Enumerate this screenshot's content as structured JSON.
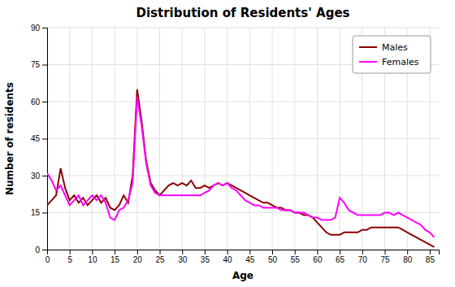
{
  "chart_data": {
    "type": "line",
    "title": "Distribution of Residents' Ages",
    "xlabel": "Age",
    "ylabel": "Number of residents",
    "x": [
      0,
      1,
      2,
      3,
      4,
      5,
      6,
      7,
      8,
      9,
      10,
      11,
      12,
      13,
      14,
      15,
      16,
      17,
      18,
      19,
      20,
      21,
      22,
      23,
      24,
      25,
      26,
      27,
      28,
      29,
      30,
      31,
      32,
      33,
      34,
      35,
      36,
      37,
      38,
      39,
      40,
      41,
      42,
      43,
      44,
      45,
      46,
      47,
      48,
      49,
      50,
      51,
      52,
      53,
      54,
      55,
      56,
      57,
      58,
      59,
      60,
      61,
      62,
      63,
      64,
      65,
      66,
      67,
      68,
      69,
      70,
      71,
      72,
      73,
      74,
      75,
      76,
      77,
      78,
      79,
      80,
      81,
      82,
      83,
      84,
      85,
      86
    ],
    "series": [
      {
        "name": "Males",
        "color": "#8B0000",
        "values": [
          18,
          20,
          22,
          33,
          25,
          20,
          22,
          19,
          21,
          18,
          20,
          22,
          19,
          21,
          17,
          16,
          18,
          22,
          19,
          30,
          65,
          52,
          36,
          27,
          24,
          22,
          24,
          26,
          27,
          26,
          27,
          26,
          28,
          25,
          25,
          26,
          25,
          26,
          27,
          26,
          27,
          26,
          25,
          24,
          23,
          22,
          21,
          20,
          19,
          19,
          18,
          17,
          17,
          16,
          16,
          15,
          15,
          14,
          14,
          13,
          11,
          9,
          7,
          6,
          6,
          6,
          7,
          7,
          7,
          7,
          8,
          8,
          9,
          9,
          9,
          9,
          9,
          9,
          9,
          8,
          7,
          6,
          5,
          4,
          3,
          2,
          1
        ]
      },
      {
        "name": "Females",
        "color": "#FF00FF",
        "values": [
          31,
          28,
          24,
          26,
          22,
          18,
          20,
          22,
          18,
          20,
          22,
          20,
          22,
          19,
          13,
          12,
          16,
          17,
          20,
          27,
          62,
          50,
          35,
          26,
          23,
          22,
          22,
          22,
          22,
          22,
          22,
          22,
          22,
          22,
          22,
          23,
          24,
          26,
          27,
          26,
          27,
          25,
          24,
          22,
          20,
          19,
          18,
          18,
          17,
          17,
          17,
          17,
          16,
          16,
          16,
          15,
          15,
          15,
          14,
          13,
          13,
          12,
          12,
          12,
          13,
          21,
          19,
          16,
          15,
          14,
          14,
          14,
          14,
          14,
          14,
          15,
          15,
          14,
          15,
          14,
          13,
          12,
          11,
          10,
          8,
          7,
          5
        ]
      }
    ],
    "xlim": [
      0,
      87
    ],
    "ylim": [
      0,
      90
    ],
    "xticks": [
      0,
      5,
      10,
      15,
      20,
      25,
      30,
      35,
      40,
      45,
      50,
      55,
      60,
      65,
      70,
      75,
      80,
      85
    ],
    "yticks": [
      0,
      15,
      30,
      45,
      60,
      75,
      90
    ],
    "grid": true,
    "legend": "upper-right"
  }
}
